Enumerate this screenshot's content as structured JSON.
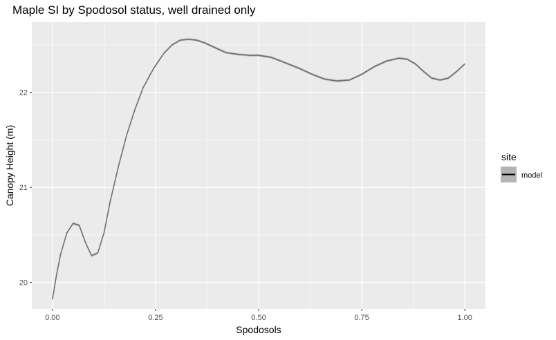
{
  "chart_data": {
    "type": "line",
    "title": "Maple SI by Spodosol status, well drained only",
    "xlabel": "Spodosols",
    "ylabel": "Canopy Height (m)",
    "xlim": [
      -0.05,
      1.05
    ],
    "ylim": [
      19.72,
      22.74
    ],
    "x_ticks": [
      0.0,
      0.25,
      0.5,
      0.75,
      1.0
    ],
    "x_tick_labels": [
      "0.00",
      "0.25",
      "0.50",
      "0.75",
      "1.00"
    ],
    "y_ticks": [
      20,
      21,
      22
    ],
    "y_tick_labels": [
      "20",
      "21",
      "22"
    ],
    "grid": true,
    "legend": {
      "title": "site",
      "position": "right",
      "entries": [
        "model"
      ]
    },
    "colors": {
      "panel": "#ebebeb",
      "grid": "#ffffff",
      "line": "#6e6e6e",
      "ribbon": "#b4b4b4"
    },
    "series": [
      {
        "name": "model",
        "points": [
          [
            0.0,
            19.82
          ],
          [
            0.01,
            20.08
          ],
          [
            0.02,
            20.3
          ],
          [
            0.035,
            20.52
          ],
          [
            0.05,
            20.62
          ],
          [
            0.065,
            20.6
          ],
          [
            0.08,
            20.42
          ],
          [
            0.095,
            20.28
          ],
          [
            0.11,
            20.31
          ],
          [
            0.125,
            20.52
          ],
          [
            0.14,
            20.85
          ],
          [
            0.16,
            21.22
          ],
          [
            0.18,
            21.55
          ],
          [
            0.2,
            21.82
          ],
          [
            0.22,
            22.05
          ],
          [
            0.245,
            22.25
          ],
          [
            0.27,
            22.41
          ],
          [
            0.29,
            22.5
          ],
          [
            0.31,
            22.55
          ],
          [
            0.33,
            22.56
          ],
          [
            0.35,
            22.55
          ],
          [
            0.37,
            22.52
          ],
          [
            0.39,
            22.48
          ],
          [
            0.42,
            22.42
          ],
          [
            0.45,
            22.4
          ],
          [
            0.48,
            22.39
          ],
          [
            0.5,
            22.39
          ],
          [
            0.53,
            22.37
          ],
          [
            0.56,
            22.32
          ],
          [
            0.6,
            22.25
          ],
          [
            0.63,
            22.19
          ],
          [
            0.66,
            22.14
          ],
          [
            0.69,
            22.12
          ],
          [
            0.72,
            22.13
          ],
          [
            0.75,
            22.19
          ],
          [
            0.78,
            22.27
          ],
          [
            0.81,
            22.33
          ],
          [
            0.84,
            22.36
          ],
          [
            0.86,
            22.35
          ],
          [
            0.88,
            22.3
          ],
          [
            0.9,
            22.22
          ],
          [
            0.92,
            22.15
          ],
          [
            0.94,
            22.13
          ],
          [
            0.96,
            22.15
          ],
          [
            0.98,
            22.22
          ],
          [
            1.0,
            22.3
          ]
        ],
        "ribbon_halfwidth": 0.012
      }
    ]
  }
}
